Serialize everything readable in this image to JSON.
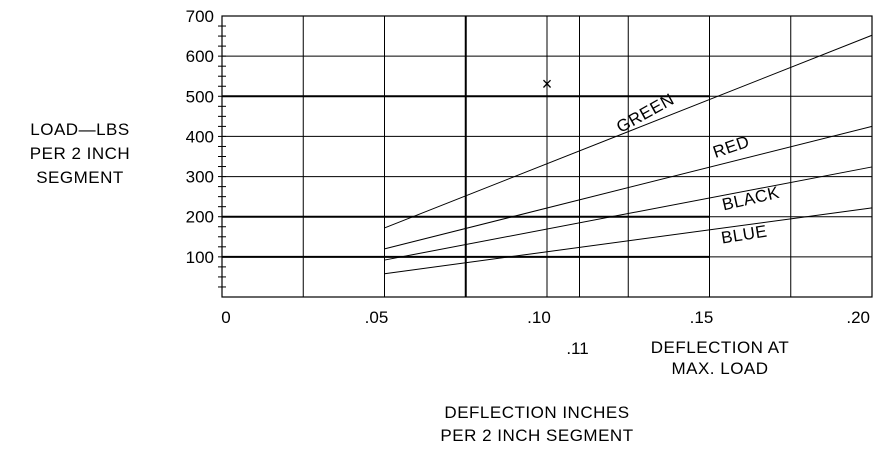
{
  "chart_data": {
    "type": "line",
    "ylabel_lines": [
      "LOAD—LBS",
      "PER 2 INCH",
      "SEGMENT"
    ],
    "xlabel_lines": [
      "DEFLECTION INCHES",
      "PER 2 INCH SEGMENT"
    ],
    "note_lines": [
      "DEFLECTION AT",
      "MAX. LOAD"
    ],
    "xlim": [
      0,
      0.2
    ],
    "ylim": [
      0,
      700
    ],
    "x_ticks": [
      {
        "value": 0,
        "label": "0"
      },
      {
        "value": 0.05,
        "label": ".05"
      },
      {
        "value": 0.1,
        "label": ".10"
      },
      {
        "value": 0.15,
        "label": ".15"
      },
      {
        "value": 0.2,
        "label": ".20"
      }
    ],
    "x_extra_tick": {
      "value": 0.11,
      "label": ".11"
    },
    "y_ticks": [
      {
        "value": 100,
        "label": "100"
      },
      {
        "value": 200,
        "label": "200"
      },
      {
        "value": 300,
        "label": "300"
      },
      {
        "value": 400,
        "label": "400"
      },
      {
        "value": 500,
        "label": "500"
      },
      {
        "value": 600,
        "label": "600"
      },
      {
        "value": 700,
        "label": "700"
      }
    ],
    "y_minor_step": 25,
    "x_grid": [
      0.025,
      0.05,
      0.075,
      0.1,
      0.11,
      0.125,
      0.15,
      0.175
    ],
    "y_grid": [
      100,
      200,
      300,
      400,
      500,
      600
    ],
    "y_heavy_lines": [
      {
        "y": 100,
        "x": [
          0,
          0.15
        ]
      },
      {
        "y": 200,
        "x": [
          0,
          0.15
        ]
      },
      {
        "y": 500,
        "x": [
          0,
          0.15
        ]
      }
    ],
    "x_heavy_lines": [
      {
        "x": 0.075,
        "y": [
          0,
          700
        ]
      }
    ],
    "series": [
      {
        "name": "GREEN",
        "x": [
          0.05,
          0.2
        ],
        "y": [
          172,
          652
        ]
      },
      {
        "name": "RED",
        "x": [
          0.05,
          0.2
        ],
        "y": [
          120,
          425
        ]
      },
      {
        "name": "BLACK",
        "x": [
          0.05,
          0.2
        ],
        "y": [
          92,
          324
        ]
      },
      {
        "name": "BLUE",
        "x": [
          0.05,
          0.2
        ],
        "y": [
          58,
          222
        ]
      }
    ],
    "marker": {
      "x": 0.1,
      "y": 530,
      "symbol": "×"
    }
  }
}
